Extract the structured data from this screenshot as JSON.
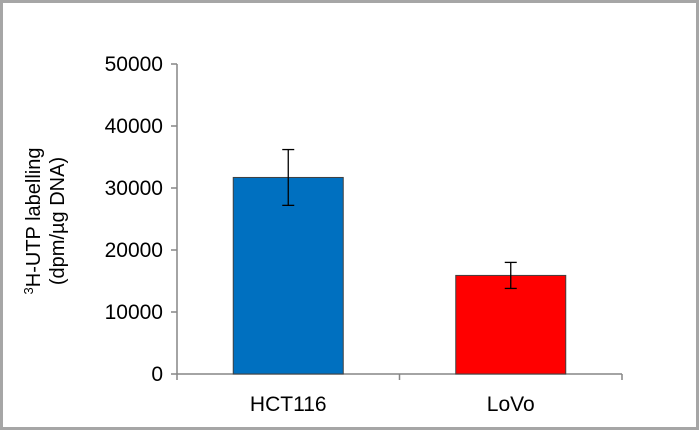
{
  "chart_data": {
    "type": "bar",
    "categories": [
      "HCT116",
      "LoVo"
    ],
    "series": [
      {
        "values": [
          31700,
          15900
        ],
        "error": [
          4500,
          2100
        ],
        "colors": [
          "#0070c0",
          "#ff0000"
        ]
      }
    ],
    "ylim": [
      0,
      50000
    ],
    "yticks": [
      "0",
      "10000",
      "20000",
      "30000",
      "40000",
      "50000"
    ],
    "ylabel_sup": "3",
    "ylabel_line1": "H-UTP labelling",
    "ylabel_line2": "(dpm/µg DNA)",
    "xlabel": "",
    "grid": false
  }
}
